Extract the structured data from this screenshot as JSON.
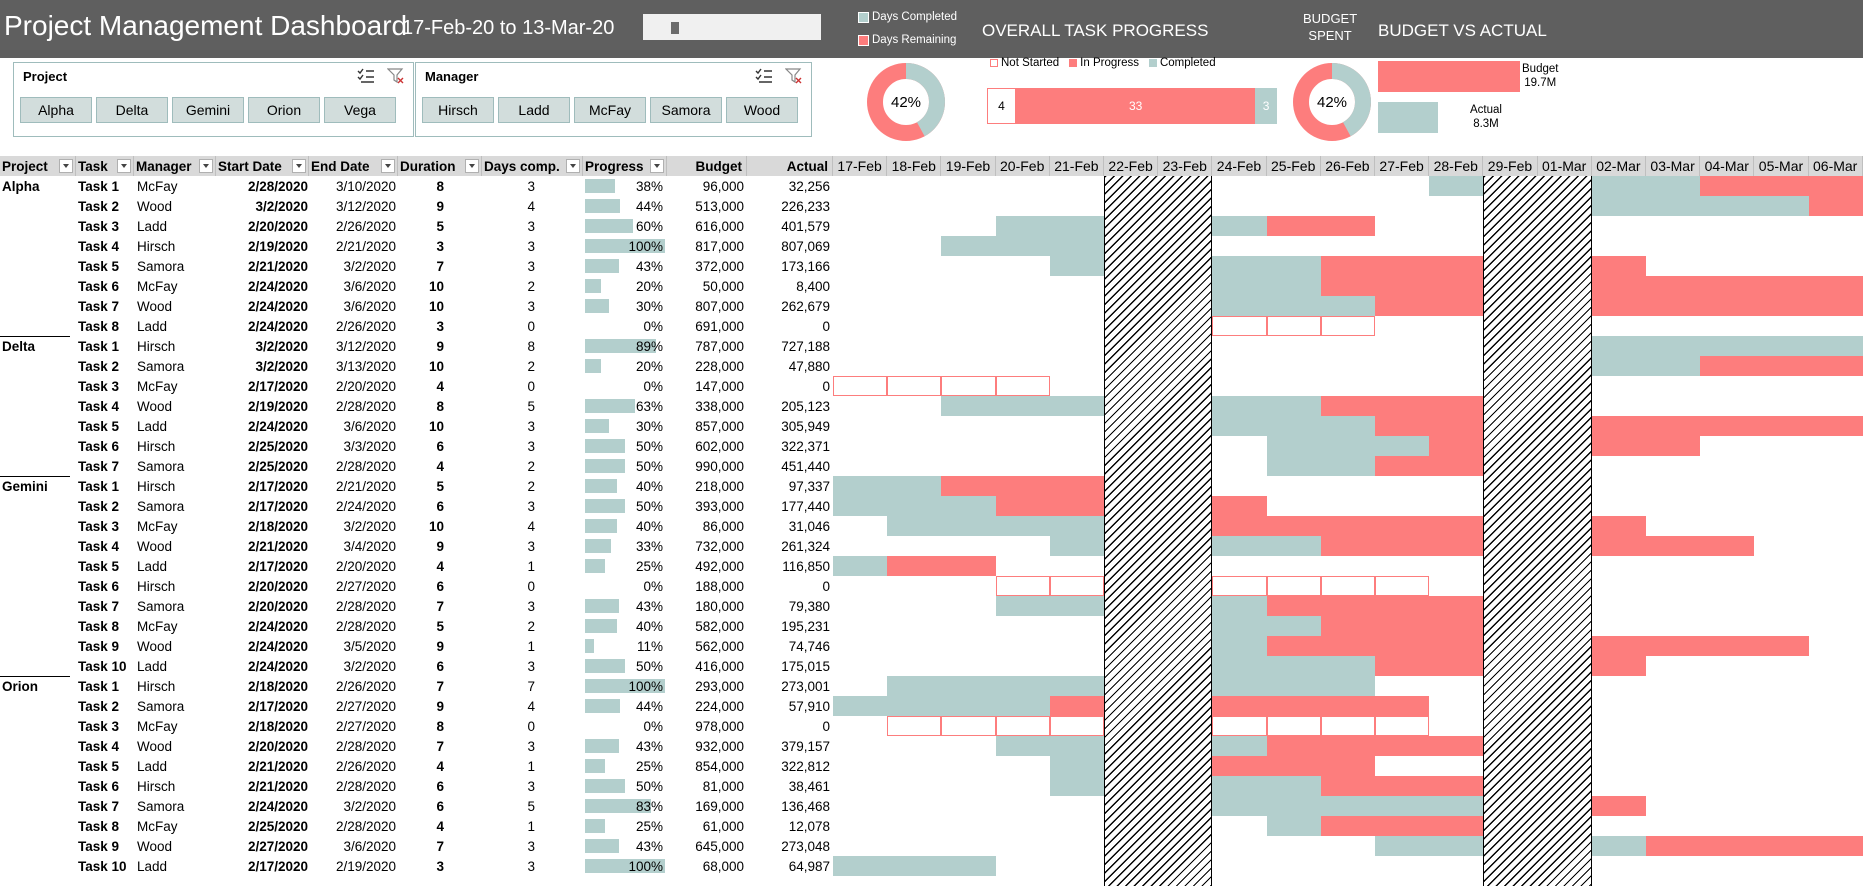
{
  "header": {
    "title": "Project Management Dashboard",
    "date_range": "17-Feb-20 to 13-Mar-20",
    "legend_days_completed": "Days Completed",
    "legend_days_remaining": "Days Remaining",
    "overall_task_progress": "OVERALL TASK PROGRESS",
    "budget_spent_line1": "BUDGET",
    "budget_spent_line2": "SPENT",
    "budget_vs_actual": "BUDGET VS ACTUAL"
  },
  "slicers": {
    "project": {
      "title": "Project",
      "items": [
        "Alpha",
        "Delta",
        "Gemini",
        "Orion",
        "Vega"
      ]
    },
    "manager": {
      "title": "Manager",
      "items": [
        "Hirsch",
        "Ladd",
        "McFay",
        "Samora",
        "Wood"
      ]
    }
  },
  "kpis": {
    "days_pct": 42,
    "days_pct_label": "42%",
    "budget_pct": 42,
    "budget_pct_label": "42%",
    "task_progress": {
      "legend": [
        "Not Started",
        "In Progress",
        "Completed"
      ],
      "not_started": "4",
      "in_progress": "33",
      "completed": "3"
    },
    "budget_vs_actual": {
      "budget_label": "Budget",
      "budget_value": "19.7M",
      "actual_label": "Actual",
      "actual_value": "8.3M"
    }
  },
  "colors": {
    "completed": "#b3cfcd",
    "remaining": "#fd7d7d",
    "header": "#5f5f5f"
  },
  "columns": [
    "Project",
    "Task",
    "Manager",
    "Start Date",
    "End Date",
    "Duration",
    "Days comp.",
    "Progress",
    "Budget",
    "Actual"
  ],
  "dates": [
    "17-Feb",
    "18-Feb",
    "19-Feb",
    "20-Feb",
    "21-Feb",
    "22-Feb",
    "23-Feb",
    "24-Feb",
    "25-Feb",
    "26-Feb",
    "27-Feb",
    "28-Feb",
    "29-Feb",
    "01-Mar",
    "02-Mar",
    "03-Mar",
    "04-Mar",
    "05-Mar",
    "06-Mar"
  ],
  "rows": [
    {
      "project": "Alpha",
      "task": "Task 1",
      "manager": "McFay",
      "start": "2/28/2020",
      "end": "3/10/2020",
      "duration": "8",
      "days": "3",
      "progress": "38%",
      "pct": 38,
      "budget": "96,000",
      "actual": "32,256",
      "g": "............CC.CRRRR",
      "z": "12-11-4-3"
    },
    {
      "project": "",
      "task": "Task 2",
      "manager": "Wood",
      "start": "3/2/2020",
      "end": "3/12/2020",
      "duration": "9",
      "days": "4",
      "progress": "44%",
      "pct": 44,
      "budget": "513,000",
      "actual": "226,233"
    },
    {
      "project": "",
      "task": "Task 3",
      "manager": "Ladd",
      "start": "2/20/2020",
      "end": "2/26/2020",
      "duration": "5",
      "days": "3",
      "progress": "60%",
      "pct": 60,
      "budget": "616,000",
      "actual": "401,579"
    },
    {
      "project": "",
      "task": "Task 4",
      "manager": "Hirsch",
      "start": "2/19/2020",
      "end": "2/21/2020",
      "duration": "3",
      "days": "3",
      "progress": "100%",
      "pct": 100,
      "budget": "817,000",
      "actual": "807,069"
    },
    {
      "project": "",
      "task": "Task 5",
      "manager": "Samora",
      "start": "2/21/2020",
      "end": "3/2/2020",
      "duration": "7",
      "days": "3",
      "progress": "43%",
      "pct": 43,
      "budget": "372,000",
      "actual": "173,166"
    },
    {
      "project": "",
      "task": "Task 6",
      "manager": "McFay",
      "start": "2/24/2020",
      "end": "3/6/2020",
      "duration": "10",
      "days": "2",
      "progress": "20%",
      "pct": 20,
      "budget": "50,000",
      "actual": "8,400"
    },
    {
      "project": "",
      "task": "Task 7",
      "manager": "Wood",
      "start": "2/24/2020",
      "end": "3/6/2020",
      "duration": "10",
      "days": "3",
      "progress": "30%",
      "pct": 30,
      "budget": "807,000",
      "actual": "262,679"
    },
    {
      "project": "",
      "task": "Task 8",
      "manager": "Ladd",
      "start": "2/24/2020",
      "end": "2/26/2020",
      "duration": "3",
      "days": "0",
      "progress": "0%",
      "pct": 0,
      "budget": "691,000",
      "actual": "0"
    },
    {
      "project": "Delta",
      "task": "Task 1",
      "manager": "Hirsch",
      "start": "3/2/2020",
      "end": "3/12/2020",
      "duration": "9",
      "days": "8",
      "progress": "89%",
      "pct": 89,
      "budget": "787,000",
      "actual": "727,188"
    },
    {
      "project": "",
      "task": "Task 2",
      "manager": "Samora",
      "start": "3/2/2020",
      "end": "3/13/2020",
      "duration": "10",
      "days": "2",
      "progress": "20%",
      "pct": 20,
      "budget": "228,000",
      "actual": "47,880"
    },
    {
      "project": "",
      "task": "Task 3",
      "manager": "McFay",
      "start": "2/17/2020",
      "end": "2/20/2020",
      "duration": "4",
      "days": "0",
      "progress": "0%",
      "pct": 0,
      "budget": "147,000",
      "actual": "0"
    },
    {
      "project": "",
      "task": "Task 4",
      "manager": "Wood",
      "start": "2/19/2020",
      "end": "2/28/2020",
      "duration": "8",
      "days": "5",
      "progress": "63%",
      "pct": 63,
      "budget": "338,000",
      "actual": "205,123"
    },
    {
      "project": "",
      "task": "Task 5",
      "manager": "Ladd",
      "start": "2/24/2020",
      "end": "3/6/2020",
      "duration": "10",
      "days": "3",
      "progress": "30%",
      "pct": 30,
      "budget": "857,000",
      "actual": "305,949"
    },
    {
      "project": "",
      "task": "Task 6",
      "manager": "Hirsch",
      "start": "2/25/2020",
      "end": "3/3/2020",
      "duration": "6",
      "days": "3",
      "progress": "50%",
      "pct": 50,
      "budget": "602,000",
      "actual": "322,371"
    },
    {
      "project": "",
      "task": "Task 7",
      "manager": "Samora",
      "start": "2/25/2020",
      "end": "2/28/2020",
      "duration": "4",
      "days": "2",
      "progress": "50%",
      "pct": 50,
      "budget": "990,000",
      "actual": "451,440"
    },
    {
      "project": "Gemini",
      "task": "Task 1",
      "manager": "Hirsch",
      "start": "2/17/2020",
      "end": "2/21/2020",
      "duration": "5",
      "days": "2",
      "progress": "40%",
      "pct": 40,
      "budget": "218,000",
      "actual": "97,337"
    },
    {
      "project": "",
      "task": "Task 2",
      "manager": "Samora",
      "start": "2/17/2020",
      "end": "2/24/2020",
      "duration": "6",
      "days": "3",
      "progress": "50%",
      "pct": 50,
      "budget": "393,000",
      "actual": "177,440"
    },
    {
      "project": "",
      "task": "Task 3",
      "manager": "McFay",
      "start": "2/18/2020",
      "end": "3/2/2020",
      "duration": "10",
      "days": "4",
      "progress": "40%",
      "pct": 40,
      "budget": "86,000",
      "actual": "31,046"
    },
    {
      "project": "",
      "task": "Task 4",
      "manager": "Wood",
      "start": "2/21/2020",
      "end": "3/4/2020",
      "duration": "9",
      "days": "3",
      "progress": "33%",
      "pct": 33,
      "budget": "732,000",
      "actual": "261,324"
    },
    {
      "project": "",
      "task": "Task 5",
      "manager": "Ladd",
      "start": "2/17/2020",
      "end": "2/20/2020",
      "duration": "4",
      "days": "1",
      "progress": "25%",
      "pct": 25,
      "budget": "492,000",
      "actual": "116,850"
    },
    {
      "project": "",
      "task": "Task 6",
      "manager": "Hirsch",
      "start": "2/20/2020",
      "end": "2/27/2020",
      "duration": "6",
      "days": "0",
      "progress": "0%",
      "pct": 0,
      "budget": "188,000",
      "actual": "0"
    },
    {
      "project": "",
      "task": "Task 7",
      "manager": "Samora",
      "start": "2/20/2020",
      "end": "2/28/2020",
      "duration": "7",
      "days": "3",
      "progress": "43%",
      "pct": 43,
      "budget": "180,000",
      "actual": "79,380"
    },
    {
      "project": "",
      "task": "Task 8",
      "manager": "McFay",
      "start": "2/24/2020",
      "end": "2/28/2020",
      "duration": "5",
      "days": "2",
      "progress": "40%",
      "pct": 40,
      "budget": "582,000",
      "actual": "195,231"
    },
    {
      "project": "",
      "task": "Task 9",
      "manager": "Wood",
      "start": "2/24/2020",
      "end": "3/5/2020",
      "duration": "9",
      "days": "1",
      "progress": "11%",
      "pct": 11,
      "budget": "562,000",
      "actual": "74,746"
    },
    {
      "project": "",
      "task": "Task 10",
      "manager": "Ladd",
      "start": "2/24/2020",
      "end": "3/2/2020",
      "duration": "6",
      "days": "3",
      "progress": "50%",
      "pct": 50,
      "budget": "416,000",
      "actual": "175,015"
    },
    {
      "project": "Orion",
      "task": "Task 1",
      "manager": "Hirsch",
      "start": "2/18/2020",
      "end": "2/26/2020",
      "duration": "7",
      "days": "7",
      "progress": "100%",
      "pct": 100,
      "budget": "293,000",
      "actual": "273,001"
    },
    {
      "project": "",
      "task": "Task 2",
      "manager": "Samora",
      "start": "2/17/2020",
      "end": "2/27/2020",
      "duration": "9",
      "days": "4",
      "progress": "44%",
      "pct": 44,
      "budget": "224,000",
      "actual": "57,910"
    },
    {
      "project": "",
      "task": "Task 3",
      "manager": "McFay",
      "start": "2/18/2020",
      "end": "2/27/2020",
      "duration": "8",
      "days": "0",
      "progress": "0%",
      "pct": 0,
      "budget": "978,000",
      "actual": "0"
    },
    {
      "project": "",
      "task": "Task 4",
      "manager": "Wood",
      "start": "2/20/2020",
      "end": "2/28/2020",
      "duration": "7",
      "days": "3",
      "progress": "43%",
      "pct": 43,
      "budget": "932,000",
      "actual": "379,157"
    },
    {
      "project": "",
      "task": "Task 5",
      "manager": "Ladd",
      "start": "2/21/2020",
      "end": "2/26/2020",
      "duration": "4",
      "days": "1",
      "progress": "25%",
      "pct": 25,
      "budget": "854,000",
      "actual": "322,812"
    },
    {
      "project": "",
      "task": "Task 6",
      "manager": "Hirsch",
      "start": "2/21/2020",
      "end": "2/28/2020",
      "duration": "6",
      "days": "3",
      "progress": "50%",
      "pct": 50,
      "budget": "81,000",
      "actual": "38,461"
    },
    {
      "project": "",
      "task": "Task 7",
      "manager": "Samora",
      "start": "2/24/2020",
      "end": "3/2/2020",
      "duration": "6",
      "days": "5",
      "progress": "83%",
      "pct": 83,
      "budget": "169,000",
      "actual": "136,468"
    },
    {
      "project": "",
      "task": "Task 8",
      "manager": "McFay",
      "start": "2/25/2020",
      "end": "2/28/2020",
      "duration": "4",
      "days": "1",
      "progress": "25%",
      "pct": 25,
      "budget": "61,000",
      "actual": "12,078"
    },
    {
      "project": "",
      "task": "Task 9",
      "manager": "Wood",
      "start": "2/27/2020",
      "end": "3/6/2020",
      "duration": "7",
      "days": "3",
      "progress": "43%",
      "pct": 43,
      "budget": "645,000",
      "actual": "273,048"
    },
    {
      "project": "",
      "task": "Task 10",
      "manager": "Ladd",
      "start": "2/17/2020",
      "end": "2/19/2020",
      "duration": "3",
      "days": "3",
      "progress": "100%",
      "pct": 100,
      "budget": "68,000",
      "actual": "64,987"
    }
  ],
  "gantt": [
    "...........C..CCRRR",
    "..............CCCCR",
    "...CC..CRR.........",
    "..CCC..............",
    "....C..CCRRR..R....",
    ".......CCRRR..RRRRR",
    ".......CCCRR..RRRRR",
    ".......NNN.........",
    "..............CCCCC",
    "..............CCRRR",
    "NNNN...............",
    "..CCC..CCRRR.......",
    ".......CCCRR..RRRRR",
    "........CCCR..RR...",
    "........CCRR.......",
    "CCRRR..............",
    "CCCRR..R...........",
    ".CCCC..RRRRR..R....",
    "....C..CCRRR..RRR..",
    "CRR................",
    "...NN..NNNN........",
    "...CC..CRRRR.......",
    ".......CCRRR.......",
    ".......CRRRR..RRRR.",
    ".......CCCRR..R....",
    ".CCCC..CCC.........",
    "CCCCR..RRRR........",
    ".NNNN..NNNN........",
    "...CC..CRRRR.......",
    "....C..RRR.........",
    "....C..CCRRR.......",
    ".......CCCCC..R....",
    "........CRRR.......",
    "..........CC..CRRRR",
    "CCC................"
  ]
}
